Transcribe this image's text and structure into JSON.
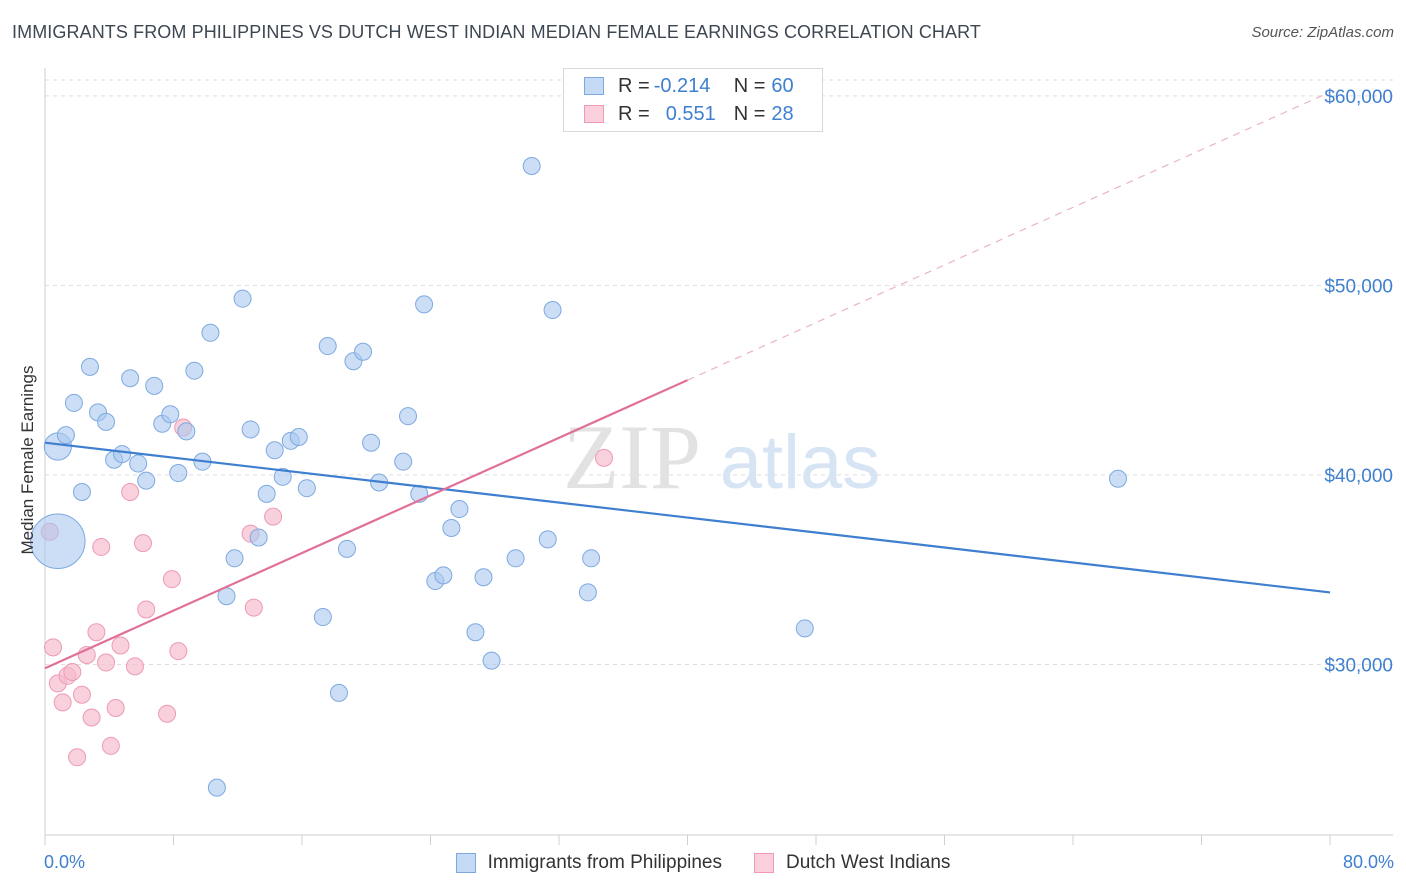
{
  "header": {
    "title": "IMMIGRANTS FROM PHILIPPINES VS DUTCH WEST INDIAN MEDIAN FEMALE EARNINGS CORRELATION CHART",
    "source": "Source: ZipAtlas.com"
  },
  "watermark": {
    "zip": "ZIP",
    "atlas": "atlas"
  },
  "legend_stats": {
    "rows": [
      {
        "r_label": "R = ",
        "r_value": "-0.214",
        "n_label": "N = ",
        "n_value": "60",
        "color": "#a9c8ef"
      },
      {
        "r_label": "R = ",
        "r_value": "0.551",
        "n_label": "N = ",
        "n_value": "28",
        "color": "#f5b8cb"
      }
    ]
  },
  "bottom_legend": {
    "items": [
      {
        "label": "Immigrants from Philippines",
        "color": "#a9c8ef"
      },
      {
        "label": "Dutch West Indians",
        "color": "#f5b8cb"
      }
    ]
  },
  "chart_data": {
    "type": "scatter",
    "xlabel": "",
    "ylabel": "Median Female Earnings",
    "xlim": [
      0,
      80
    ],
    "ylim": [
      21000,
      62000
    ],
    "x_tick_labels": {
      "min": "0.0%",
      "max": "80.0%"
    },
    "y_ticks": [
      30000,
      40000,
      50000,
      60000
    ],
    "y_tick_labels": [
      "$30,000",
      "$40,000",
      "$50,000",
      "$60,000"
    ],
    "grid": true,
    "colors": {
      "philippines": "#3f7fd0",
      "philippines_fill": "#a9c8ef",
      "dutch": "#e0709a",
      "dutch_fill": "#f5b8cb",
      "tick_text": "#3f7fd0"
    },
    "series": [
      {
        "name": "Immigrants from Philippines",
        "points": [
          [
            0.8,
            36500
          ],
          [
            0.8,
            41500
          ],
          [
            1.3,
            42100
          ],
          [
            1.8,
            43800
          ],
          [
            2.3,
            39100
          ],
          [
            2.8,
            45700
          ],
          [
            3.3,
            43300
          ],
          [
            3.8,
            42800
          ],
          [
            4.3,
            40800
          ],
          [
            4.8,
            41100
          ],
          [
            5.3,
            45100
          ],
          [
            5.8,
            40600
          ],
          [
            6.3,
            39700
          ],
          [
            6.8,
            44700
          ],
          [
            7.3,
            42700
          ],
          [
            7.8,
            43200
          ],
          [
            8.3,
            40100
          ],
          [
            8.8,
            42300
          ],
          [
            9.3,
            45500
          ],
          [
            9.8,
            40700
          ],
          [
            10.3,
            47500
          ],
          [
            10.7,
            23500
          ],
          [
            11.3,
            33600
          ],
          [
            11.8,
            35600
          ],
          [
            12.3,
            49300
          ],
          [
            12.8,
            42400
          ],
          [
            13.3,
            36700
          ],
          [
            13.8,
            39000
          ],
          [
            14.3,
            41300
          ],
          [
            14.8,
            39900
          ],
          [
            15.3,
            41800
          ],
          [
            15.8,
            42000
          ],
          [
            16.3,
            39300
          ],
          [
            17.3,
            32500
          ],
          [
            17.6,
            46800
          ],
          [
            18.3,
            28500
          ],
          [
            18.8,
            36100
          ],
          [
            19.2,
            46000
          ],
          [
            19.8,
            46500
          ],
          [
            20.3,
            41700
          ],
          [
            20.8,
            39600
          ],
          [
            22.3,
            40700
          ],
          [
            22.6,
            43100
          ],
          [
            23.3,
            39000
          ],
          [
            23.6,
            49000
          ],
          [
            24.3,
            34400
          ],
          [
            24.8,
            34700
          ],
          [
            25.3,
            37200
          ],
          [
            25.8,
            38200
          ],
          [
            26.8,
            31700
          ],
          [
            27.3,
            34600
          ],
          [
            27.8,
            30200
          ],
          [
            29.3,
            35600
          ],
          [
            30.3,
            56300
          ],
          [
            31.3,
            36600
          ],
          [
            31.6,
            48700
          ],
          [
            33.8,
            33800
          ],
          [
            34.0,
            35600
          ],
          [
            47.3,
            31900
          ],
          [
            66.8,
            39800
          ]
        ],
        "sizes": [
          3.2,
          1.6,
          1,
          1,
          1,
          1,
          1,
          1,
          1,
          1,
          1,
          1,
          1,
          1,
          1,
          1,
          1,
          1,
          1,
          1,
          1,
          1,
          1,
          1,
          1,
          1,
          1,
          1,
          1,
          1,
          1,
          1,
          1,
          1,
          1,
          1,
          1,
          1,
          1,
          1,
          1,
          1,
          1,
          1,
          1,
          1,
          1,
          1,
          1,
          1,
          1,
          1,
          1,
          1,
          1,
          1,
          1,
          1,
          1,
          1
        ],
        "trend": {
          "x": [
            0,
            80
          ],
          "y": [
            41700,
            33800
          ]
        }
      },
      {
        "name": "Dutch West Indians",
        "points": [
          [
            0.3,
            37000
          ],
          [
            0.5,
            30900
          ],
          [
            0.8,
            29000
          ],
          [
            1.1,
            28000
          ],
          [
            1.4,
            29400
          ],
          [
            1.7,
            29600
          ],
          [
            2.0,
            25100
          ],
          [
            2.3,
            28400
          ],
          [
            2.6,
            30500
          ],
          [
            2.9,
            27200
          ],
          [
            3.2,
            31700
          ],
          [
            3.5,
            36200
          ],
          [
            3.8,
            30100
          ],
          [
            4.1,
            25700
          ],
          [
            4.4,
            27700
          ],
          [
            4.7,
            31000
          ],
          [
            5.3,
            39100
          ],
          [
            5.6,
            29900
          ],
          [
            6.1,
            36400
          ],
          [
            6.3,
            32900
          ],
          [
            7.6,
            27400
          ],
          [
            7.9,
            34500
          ],
          [
            8.3,
            30700
          ],
          [
            8.6,
            42500
          ],
          [
            12.8,
            36900
          ],
          [
            13.0,
            33000
          ],
          [
            14.2,
            37800
          ],
          [
            34.8,
            40900
          ]
        ],
        "trend": {
          "x": [
            0,
            40
          ],
          "y": [
            29800,
            45000
          ]
        },
        "trend_extended": {
          "x": [
            40,
            80
          ],
          "y": [
            45000,
            60200
          ]
        }
      }
    ]
  }
}
